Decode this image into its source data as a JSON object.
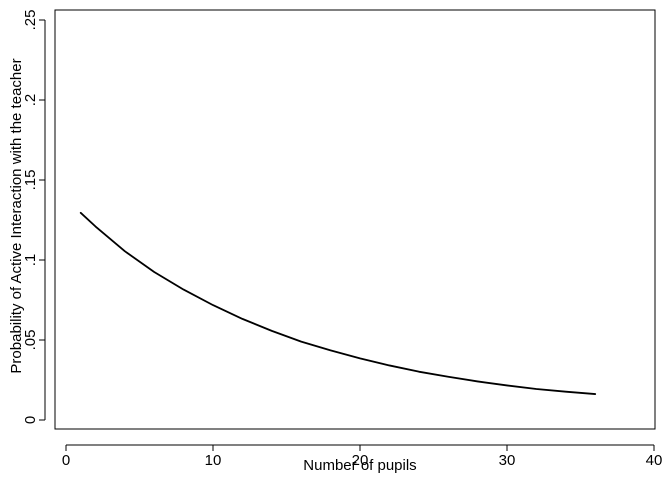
{
  "chart_data": {
    "type": "line",
    "title": "",
    "xlabel": "Number of pupils",
    "ylabel": "Probability of Active Interaction with the teacher",
    "xlim": [
      0,
      40
    ],
    "ylim": [
      0,
      0.25
    ],
    "x_ticks": [
      0,
      10,
      20,
      30,
      40
    ],
    "x_tick_labels": [
      "0",
      "10",
      "20",
      "30",
      "40"
    ],
    "y_ticks": [
      0,
      0.05,
      0.1,
      0.15,
      0.2,
      0.25
    ],
    "y_tick_labels": [
      "0",
      ".05",
      ".1",
      ".15",
      ".2",
      ".25"
    ],
    "grid": false,
    "legend": "none",
    "series": [
      {
        "color": "#000000",
        "x": [
          1,
          2,
          4,
          6,
          8,
          10,
          12,
          14,
          16,
          18,
          20,
          22,
          24,
          26,
          28,
          30,
          32,
          34,
          36
        ],
        "y": [
          0.1295,
          0.121,
          0.1055,
          0.0925,
          0.0815,
          0.0718,
          0.0632,
          0.0557,
          0.049,
          0.0435,
          0.0385,
          0.0341,
          0.0302,
          0.027,
          0.0241,
          0.0216,
          0.0194,
          0.0177,
          0.0162
        ]
      }
    ]
  }
}
